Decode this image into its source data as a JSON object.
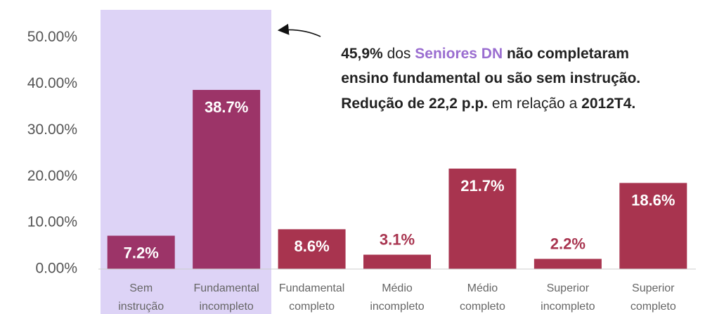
{
  "chart_data": {
    "type": "bar",
    "categories": [
      "Sem instrução",
      "Fundamental incompleto",
      "Fundamental completo",
      "Médio incompleto",
      "Médio completo",
      "Superior incompleto",
      "Superior completo"
    ],
    "values": [
      7.2,
      38.7,
      8.6,
      3.1,
      21.7,
      2.2,
      18.6
    ],
    "value_labels": [
      "7.2%",
      "38.7%",
      "8.6%",
      "3.1%",
      "21.7%",
      "2.2%",
      "18.6%"
    ],
    "colors": [
      "#9c3468",
      "#9c3468",
      "#a8344f",
      "#a8344f",
      "#a8344f",
      "#a8344f",
      "#a8344f"
    ],
    "ylim": [
      0,
      56
    ],
    "yticks": [
      {
        "value": 0,
        "label": "0.00%"
      },
      {
        "value": 10,
        "label": "10.00%"
      },
      {
        "value": 20,
        "label": "20.00%"
      },
      {
        "value": 30,
        "label": "30.00%"
      },
      {
        "value": 40,
        "label": "40.00%"
      },
      {
        "value": 50,
        "label": "50.00%"
      }
    ],
    "grid": false,
    "annotation": [
      [
        "45,9%",
        " dos ",
        "Seniores DN",
        " não completaram"
      ],
      [
        "ensino fundamental ou são sem instrução."
      ],
      [
        "Redução de 22,2 p.p.",
        " em relação a ",
        "2012T4."
      ]
    ]
  }
}
